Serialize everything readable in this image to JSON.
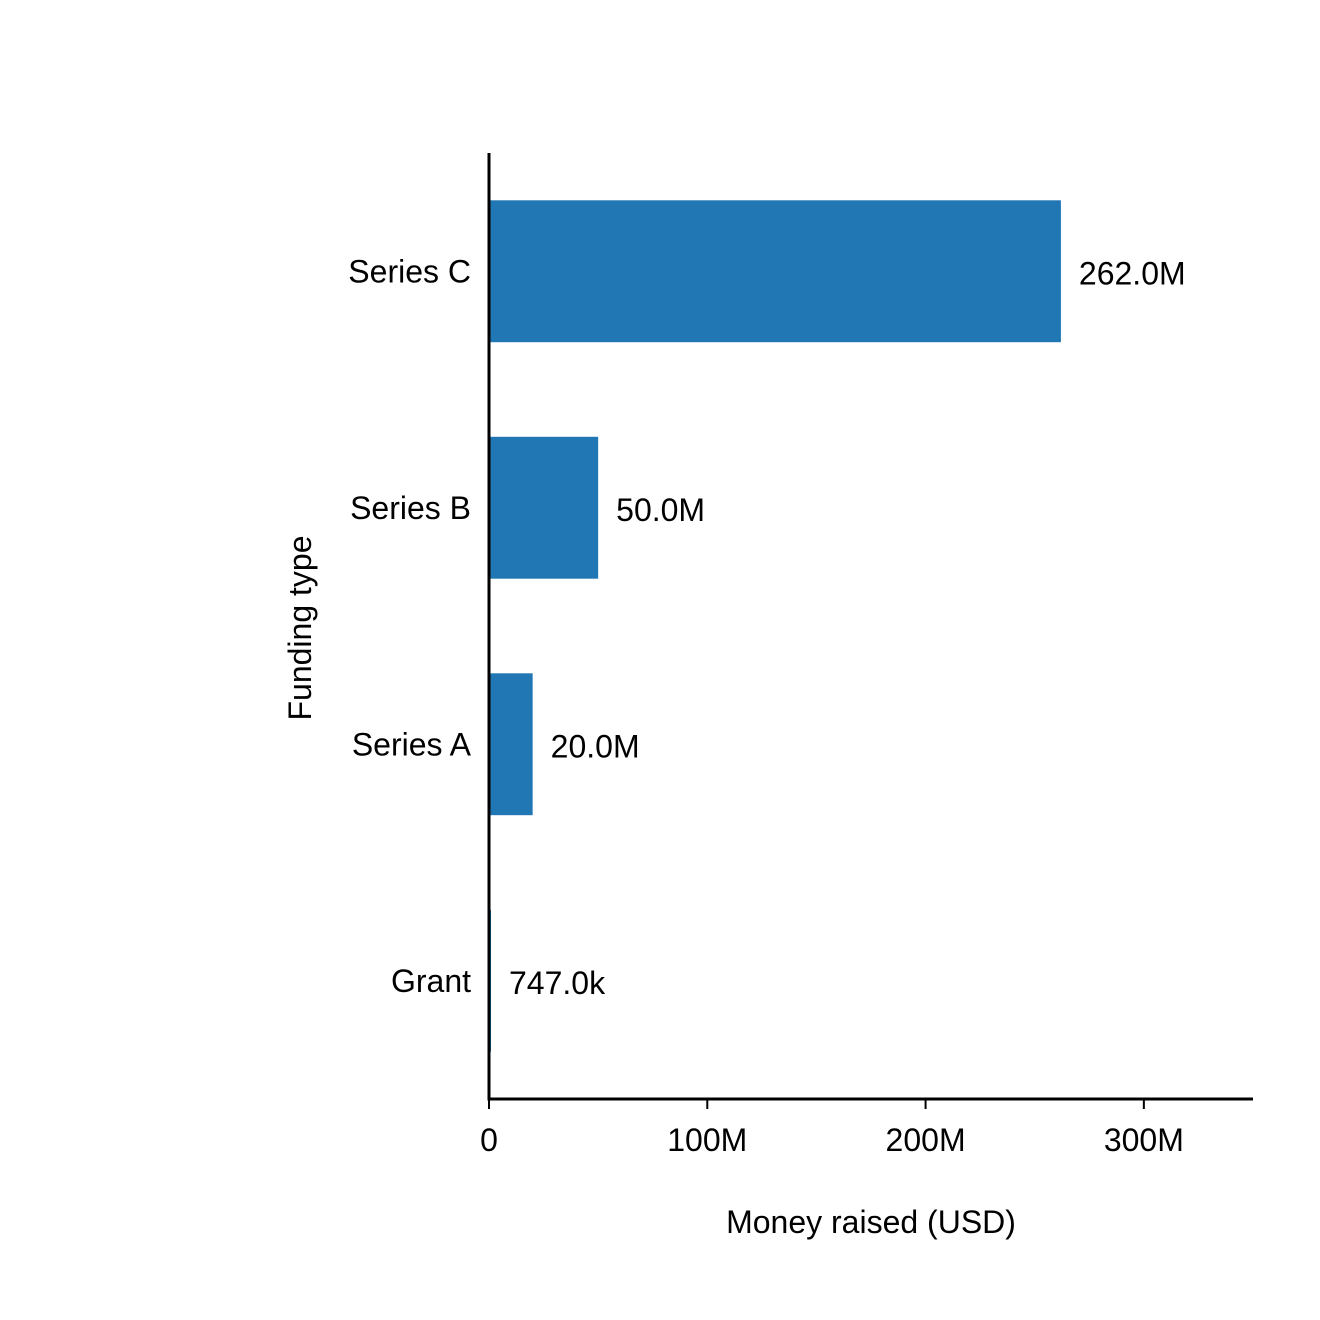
{
  "chart_data": {
    "type": "bar",
    "orientation": "horizontal",
    "categories": [
      "Series C",
      "Series B",
      "Series A",
      "Grant"
    ],
    "values": [
      262000000,
      50000000,
      20000000,
      747000
    ],
    "data_labels": [
      "262.0M",
      "50.0M",
      "20.0M",
      "747.0k"
    ],
    "xlabel": "Money raised (USD)",
    "ylabel": "Funding type",
    "xlim": [
      0,
      350000000
    ],
    "xticks": [
      0,
      100000000,
      200000000,
      300000000
    ],
    "xtick_labels": [
      "0",
      "100M",
      "200M",
      "300M"
    ],
    "grid": false,
    "legend": "none",
    "bar_color": "#2077b4",
    "axis_color": "#000000"
  }
}
